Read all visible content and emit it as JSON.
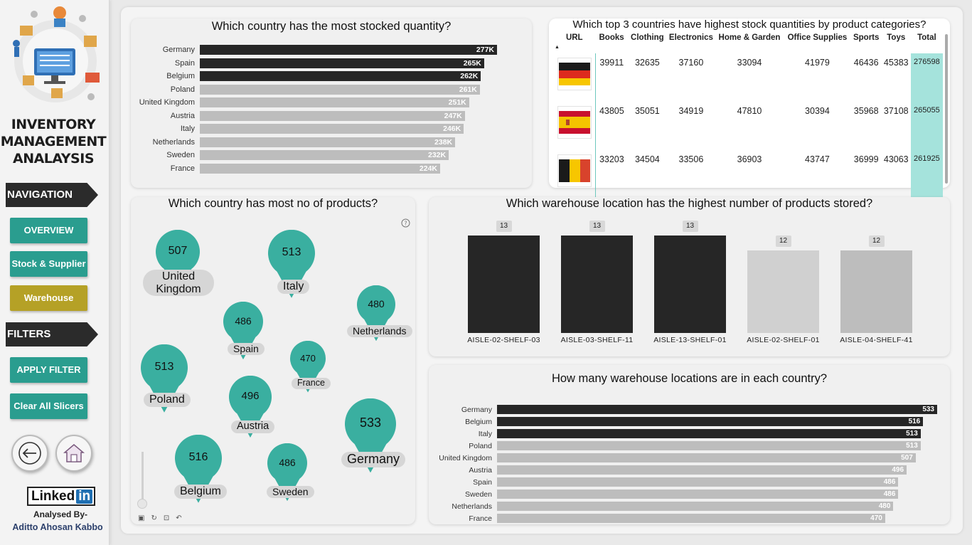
{
  "sidebar": {
    "title": "INVENTORY MANAGEMENT ANALAYSIS",
    "navigation_label": "NAVIGATION",
    "nav_buttons": [
      "OVERVIEW",
      "Stock & Supplier",
      "Warehouse"
    ],
    "filters_label": "FILTERS",
    "filter_buttons": [
      "APPLY FILTER",
      "Clear All Slicers"
    ],
    "linkedin_text": "Linked",
    "linkedin_in": "in",
    "analysed_by": "Analysed By-",
    "author": "Aditto Ahosan Kabbo",
    "colors": {
      "teal": "#2a9d8f",
      "gold": "#b5a126",
      "dark": "#2b2b2b"
    }
  },
  "charts": {
    "stocked": {
      "title": "Which country has the most stocked quantity?",
      "chart_data": {
        "type": "bar",
        "orientation": "horizontal",
        "categories": [
          "Germany",
          "Spain",
          "Belgium",
          "Poland",
          "United Kingdom",
          "Austria",
          "Italy",
          "Netherlands",
          "Sweden",
          "France"
        ],
        "values": [
          277,
          265,
          262,
          261,
          251,
          247,
          246,
          238,
          232,
          224
        ],
        "value_labels": [
          "277K",
          "265K",
          "262K",
          "261K",
          "251K",
          "247K",
          "246K",
          "238K",
          "232K",
          "224K"
        ],
        "highlight_count": 3,
        "colors": {
          "highlight": "#262626",
          "other": "#bdbdbd"
        }
      }
    },
    "top3": {
      "title": "Which top 3 countries have highest stock quantities by product categories?",
      "columns": [
        "URL",
        "Books",
        "Clothing",
        "Electronics",
        "Home & Garden",
        "Office Supplies",
        "Sports",
        "Toys",
        "Total"
      ],
      "rows": [
        {
          "flag": "germany-flag-icon",
          "values": [
            "39911",
            "32635",
            "37160",
            "33094",
            "41979",
            "46436",
            "45383",
            "276598"
          ]
        },
        {
          "flag": "spain-flag-icon",
          "values": [
            "43805",
            "35051",
            "34919",
            "47810",
            "30394",
            "35968",
            "37108",
            "265055"
          ]
        },
        {
          "flag": "belgium-flag-icon",
          "values": [
            "33203",
            "34504",
            "33506",
            "36903",
            "43747",
            "36999",
            "43063",
            "261925"
          ]
        }
      ]
    },
    "products_map": {
      "title": "Which country has most no of products?",
      "pins": [
        {
          "label": "United Kingdom",
          "value": "507"
        },
        {
          "label": "Italy",
          "value": "513"
        },
        {
          "label": "Netherlands",
          "value": "480"
        },
        {
          "label": "Spain",
          "value": "486"
        },
        {
          "label": "Poland",
          "value": "513"
        },
        {
          "label": "France",
          "value": "470"
        },
        {
          "label": "Austria",
          "value": "496"
        },
        {
          "label": "Germany",
          "value": "533"
        },
        {
          "label": "Belgium",
          "value": "516"
        },
        {
          "label": "Sweden",
          "value": "486"
        }
      ],
      "pin_color": "#3aafa0"
    },
    "warehouse": {
      "title": "Which warehouse location has the highest number of products stored?",
      "chart_data": {
        "type": "bar",
        "categories": [
          "AISLE-02-SHELF-03",
          "AISLE-03-SHELF-11",
          "AISLE-13-SHELF-01",
          "AISLE-02-SHELF-01",
          "AISLE-04-SHELF-41"
        ],
        "values": [
          13,
          13,
          13,
          12,
          12
        ],
        "colors": [
          "#262626",
          "#262626",
          "#262626",
          "#d0d0d0",
          "#bdbdbd"
        ]
      }
    },
    "locations": {
      "title": "How many warehouse locations are in each country?",
      "chart_data": {
        "type": "bar",
        "orientation": "horizontal",
        "categories": [
          "Germany",
          "Belgium",
          "Italy",
          "Poland",
          "United Kingdom",
          "Austria",
          "Spain",
          "Sweden",
          "Netherlands",
          "France"
        ],
        "values": [
          533,
          516,
          513,
          513,
          507,
          496,
          486,
          486,
          480,
          470
        ],
        "highlight_count": 3,
        "colors": {
          "highlight": "#262626",
          "other": "#bdbdbd"
        }
      }
    }
  }
}
